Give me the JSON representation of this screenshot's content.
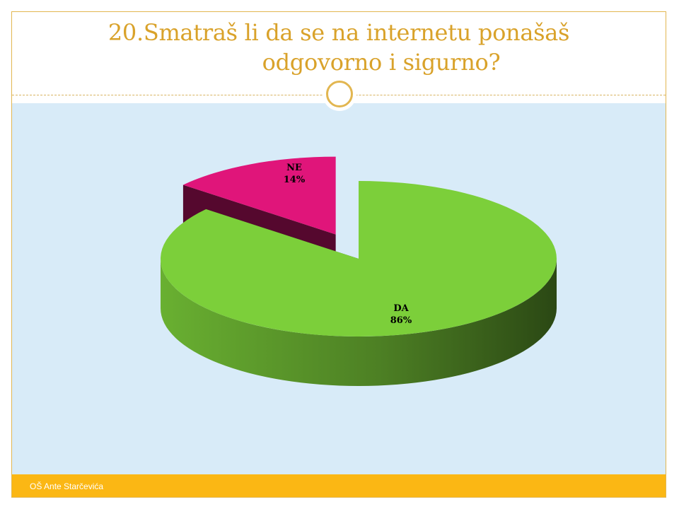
{
  "slide": {
    "title_line1": "20.Smatraš li da se na internetu ponašaš",
    "title_line2": "odgovorno i sigurno?",
    "footer": "OŠ Ante Starčevića"
  },
  "colors": {
    "title": "#d9a22a",
    "accent_gold": "#e2b650",
    "chart_background": "#d8ebf8",
    "footer_bar": "#fbb714"
  },
  "chart_data": {
    "type": "pie",
    "style": "3d-exploded",
    "title": "",
    "legend": "none",
    "slices": [
      {
        "name": "DA",
        "value": 86,
        "label": "86%",
        "color": "#7ccf3a"
      },
      {
        "name": "NE",
        "value": 14,
        "label": "14%",
        "color": "#e0157a"
      }
    ]
  }
}
